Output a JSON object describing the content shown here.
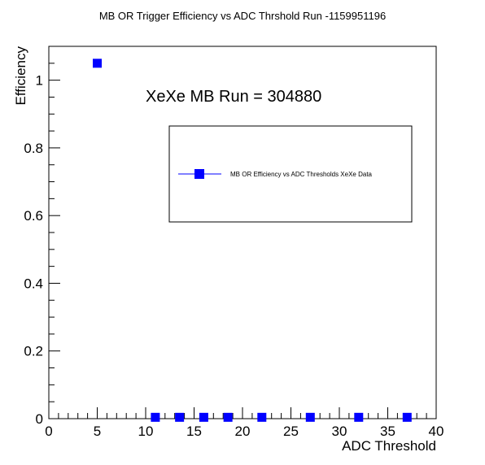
{
  "chart_data": {
    "type": "scatter",
    "title": "MB OR Trigger Efficiency vs ADC Thrshold Run -1159951196",
    "xlabel": "ADC Threshold",
    "ylabel": "Efficiency",
    "xlim": [
      0,
      40
    ],
    "ylim": [
      0,
      1.1
    ],
    "x_ticks": [
      0,
      5,
      10,
      15,
      20,
      25,
      30,
      35,
      40
    ],
    "y_ticks": [
      0,
      0.2,
      0.4,
      0.6,
      0.8,
      1
    ],
    "x_tick_labels": [
      "0",
      "5",
      "10",
      "15",
      "20",
      "25",
      "30",
      "35",
      "40"
    ],
    "y_tick_labels": [
      "0",
      "0.2",
      "0.4",
      "0.6",
      "0.8",
      "1"
    ],
    "annotation": "XeXe MB Run = 304880",
    "legend": {
      "label": "MB OR Efficiency vs ADC Thresholds XeXe Data",
      "placement": "upper-right"
    },
    "grid": false,
    "marker_color": "#0000ff",
    "series": [
      {
        "name": "MB OR Efficiency vs ADC Thresholds XeXe Data",
        "x": [
          5,
          11,
          13.5,
          16,
          18.5,
          22,
          27,
          32,
          37
        ],
        "y": [
          1.05,
          0.004,
          0.004,
          0.004,
          0.004,
          0.004,
          0.004,
          0.004,
          0.004
        ]
      }
    ]
  }
}
